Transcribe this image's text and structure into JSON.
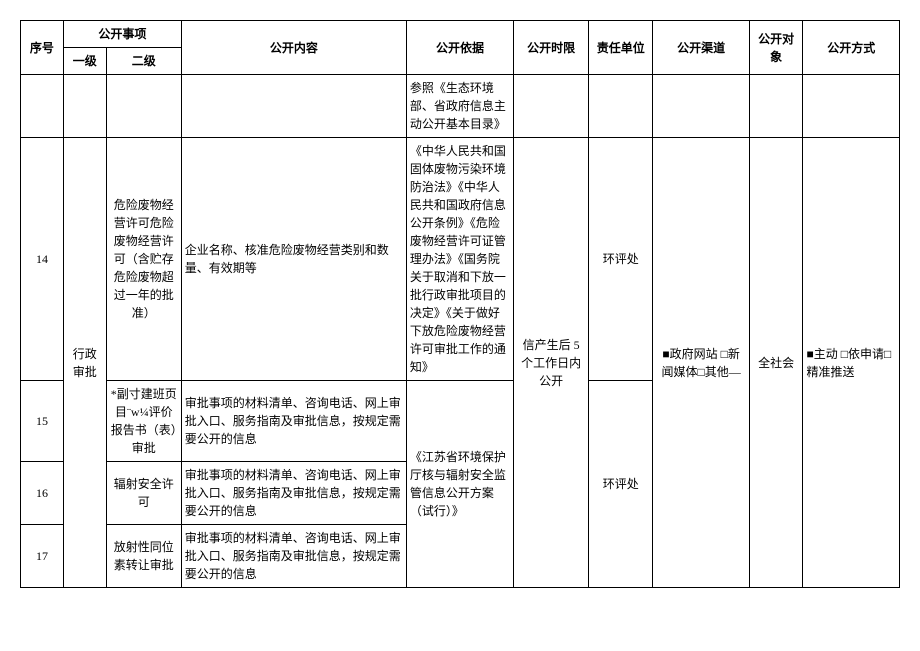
{
  "headers": {
    "seq": "序号",
    "matters": "公开事项",
    "lv1": "一级",
    "lv2": "二级",
    "content": "公开内容",
    "basis": "公开依据",
    "time": "公开时限",
    "resp": "责任单位",
    "channel": "公开渠道",
    "target": "公开对象",
    "method": "公开方式"
  },
  "row_top": {
    "basis": "参照《生态环境部、省政府信息主动公开基本目录》"
  },
  "row14": {
    "seq": "14",
    "lv1": "行政审批",
    "lv2": "危险废物经营许可危险废物经营许可（含贮存危险废物超过一年的批准）",
    "content": "企业名称、核准危险废物经营类别和数量、有效期等",
    "basis": "《中华人民共和国固体废物污染环境防治法》《中华人民共和国政府信息公开条例》《危险废物经营许可证管理办法》《国务院关于取消和下放一批行政审批项目的决定》《关于做好下放危险废物经营许可审批工作的通知》",
    "resp": "环评处"
  },
  "row15": {
    "seq": "15",
    "lv2": "*副寸建班页目¨w¼评价报告书（表）审批",
    "content": "审批事项的材料清单、咨询电话、网上审批入口、服务指南及审批信息，按规定需要公开的信息"
  },
  "row16": {
    "seq": "16",
    "lv2": "辐射安全许可",
    "content": "审批事项的材料清单、咨询电话、网上审批入口、服务指南及审批信息，按规定需要公开的信息",
    "basis": "《江苏省环境保护厅核与辐射安全监管信息公开方案（试行）》",
    "resp": "环评处"
  },
  "row17": {
    "seq": "17",
    "lv2": "放射性同位素转让审批",
    "content": "审批事项的材料清单、咨询电话、网上审批入口、服务指南及审批信息，按规定需要公开的信息"
  },
  "shared": {
    "time": "信产生后 5 个工作日内公开",
    "channel": "■政府网站 □新闻媒体□其他—",
    "target": "全社会",
    "method": "■主动 □依申请□精准推送"
  }
}
